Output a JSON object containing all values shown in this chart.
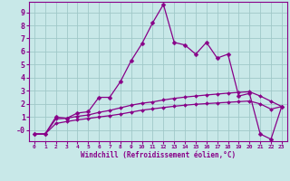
{
  "xlabel": "Windchill (Refroidissement éolien,°C)",
  "background_color": "#c8e8e8",
  "grid_color": "#a0c8c8",
  "line_color": "#880088",
  "xlim": [
    -0.5,
    23.5
  ],
  "ylim": [
    -0.85,
    9.8
  ],
  "xticks": [
    0,
    1,
    2,
    3,
    4,
    5,
    6,
    7,
    8,
    9,
    10,
    11,
    12,
    13,
    14,
    15,
    16,
    17,
    18,
    19,
    20,
    21,
    22,
    23
  ],
  "yticks": [
    0,
    1,
    2,
    3,
    4,
    5,
    6,
    7,
    8,
    9
  ],
  "ytick_labels": [
    "-0",
    "1",
    "2",
    "3",
    "4",
    "5",
    "6",
    "7",
    "8",
    "9"
  ],
  "line1_x": [
    0,
    1,
    2,
    3,
    4,
    5,
    6,
    7,
    8,
    9,
    10,
    11,
    12,
    13,
    14,
    15,
    16,
    17,
    18,
    19,
    20,
    21,
    22,
    23
  ],
  "line1_y": [
    -0.3,
    -0.3,
    1.0,
    0.9,
    1.3,
    1.4,
    2.5,
    2.5,
    3.7,
    5.3,
    6.6,
    8.2,
    9.6,
    6.7,
    6.5,
    5.8,
    6.7,
    5.5,
    5.8,
    2.6,
    2.8,
    -0.3,
    -0.7,
    1.8
  ],
  "line2_x": [
    0,
    1,
    2,
    3,
    4,
    5,
    6,
    7,
    8,
    9,
    10,
    11,
    12,
    13,
    14,
    15,
    16,
    17,
    18,
    19,
    20,
    21,
    22,
    23
  ],
  "line2_y": [
    -0.3,
    -0.3,
    0.85,
    0.9,
    1.05,
    1.15,
    1.35,
    1.5,
    1.7,
    1.9,
    2.05,
    2.15,
    2.3,
    2.42,
    2.52,
    2.6,
    2.68,
    2.75,
    2.82,
    2.88,
    2.93,
    2.6,
    2.2,
    1.8
  ],
  "line3_x": [
    0,
    1,
    2,
    3,
    4,
    5,
    6,
    7,
    8,
    9,
    10,
    11,
    12,
    13,
    14,
    15,
    16,
    17,
    18,
    19,
    20,
    21,
    22,
    23
  ],
  "line3_y": [
    -0.3,
    -0.3,
    0.5,
    0.65,
    0.78,
    0.88,
    1.0,
    1.1,
    1.22,
    1.37,
    1.52,
    1.62,
    1.72,
    1.82,
    1.9,
    1.97,
    2.02,
    2.07,
    2.12,
    2.17,
    2.22,
    2.0,
    1.6,
    1.8
  ]
}
